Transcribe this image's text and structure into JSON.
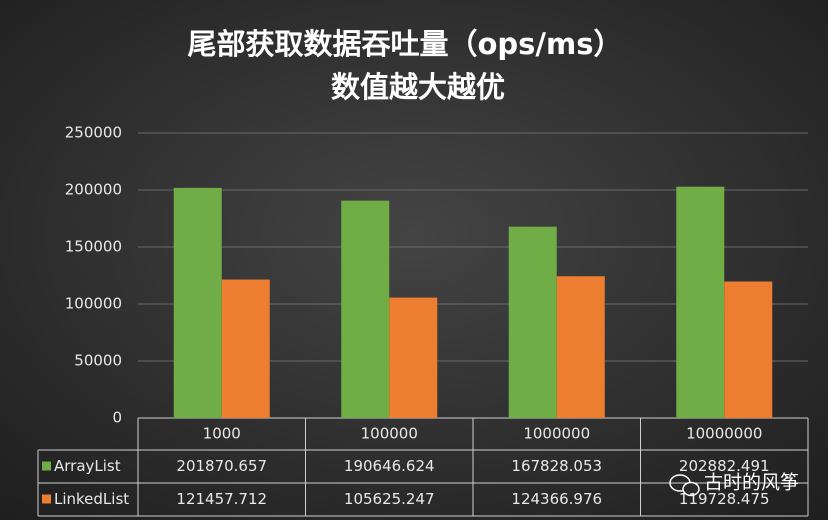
{
  "chart_data": {
    "type": "bar",
    "title": "尾部获取数据吞吐量（ops/ms）",
    "subtitle": "数值越大越优",
    "categories": [
      "1000",
      "100000",
      "1000000",
      "10000000"
    ],
    "series": [
      {
        "name": "ArrayList",
        "color": "#70ad47",
        "values": [
          201870.657,
          190646.624,
          167828.053,
          202882.491
        ]
      },
      {
        "name": "LinkedList",
        "color": "#ed7d31",
        "values": [
          121457.712,
          105625.247,
          124366.976,
          119728.475
        ]
      }
    ],
    "ylim": [
      0,
      250000
    ],
    "yticks": [
      0,
      50000,
      100000,
      150000,
      200000,
      250000
    ],
    "grid": true,
    "watermark": "古时的风筝"
  }
}
